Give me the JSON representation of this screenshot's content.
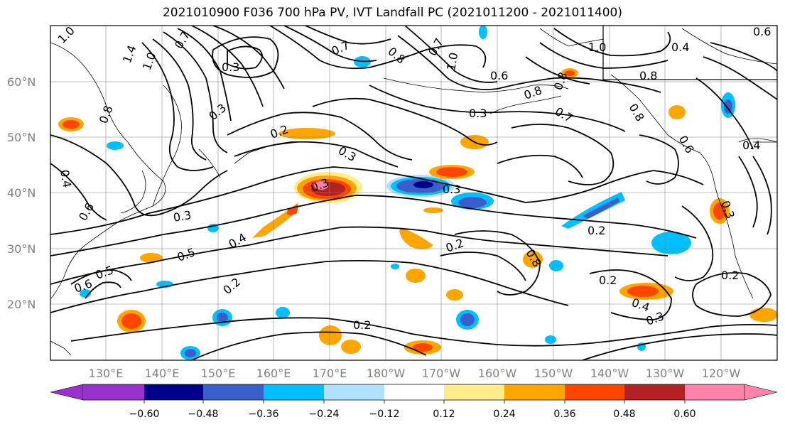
{
  "title": "2021010900 F036 700 hPa PV, IVT Landfall PC (2021011200 - 2021011400)",
  "lat_labels": [
    "60°N",
    "50°N",
    "40°N",
    "30°N",
    "20°N"
  ],
  "lon_labels": [
    "130°E",
    "140°E",
    "150°E",
    "160°E",
    "170°E",
    "180°W",
    "170°W",
    "160°W",
    "150°W",
    "140°W",
    "130°W",
    "120°W"
  ],
  "contour_labels": [
    "1.0",
    "1.4",
    "1.0",
    "0.7",
    "0.3",
    "0.7",
    "0.8",
    "0.7",
    "1.0",
    "0.6",
    "1.0",
    "0.4",
    "0.6",
    "0.8",
    "0.8",
    "0.8",
    "0.3",
    "0.7",
    "0.8",
    "0.6",
    "0.3",
    "0.2",
    "0.3",
    "0.4",
    "0.4",
    "0.8",
    "0.3",
    "0.3",
    "0.3",
    "0.4",
    "0.5",
    "0.3",
    "0.2",
    "0.2",
    "0.2",
    "0.2",
    "0.2",
    "0.4",
    "0.3",
    "0.2",
    "0.6",
    "0.5",
    "0.8",
    "0.6"
  ],
  "colorbar": {
    "colors": [
      "#9932cc",
      "#00008b",
      "#3a5fcd",
      "#00bfff",
      "#b0e2ff",
      "#ffffff",
      "#ffec8b",
      "#ffa500",
      "#ff4500",
      "#b22222",
      "#ff82ab"
    ],
    "ticks": [
      "−0.60",
      "−0.48",
      "−0.36",
      "−0.24",
      "−0.12",
      "0.12",
      "0.24",
      "0.36",
      "0.48",
      "0.60"
    ]
  },
  "colors": {
    "contour": "#000000",
    "grid": "#808080",
    "coast": "#000000"
  }
}
